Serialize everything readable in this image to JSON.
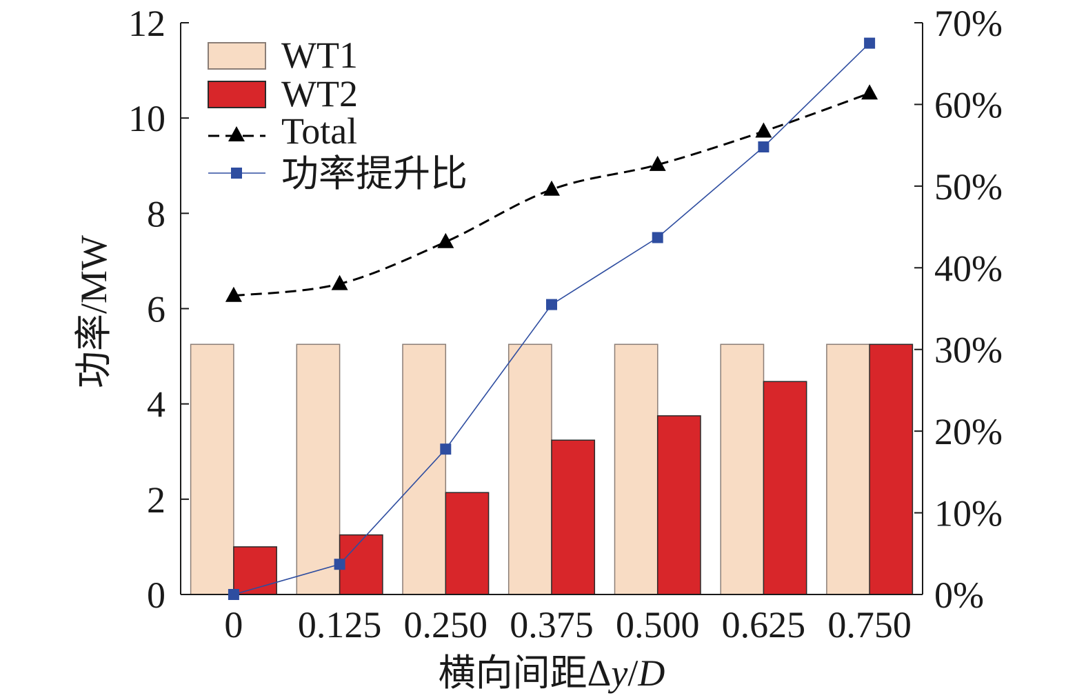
{
  "chart_data": {
    "type": "bar",
    "categories": [
      "0",
      "0.125",
      "0.250",
      "0.375",
      "0.500",
      "0.625",
      "0.750"
    ],
    "series": [
      {
        "name": "WT1",
        "type": "bar",
        "axis": "left",
        "color": "#f8dcc4",
        "edgecolor": "#8a7d76",
        "values": [
          5.25,
          5.25,
          5.25,
          5.25,
          5.25,
          5.25,
          5.25
        ]
      },
      {
        "name": "WT2",
        "type": "bar",
        "axis": "left",
        "color": "#d8262a",
        "edgecolor": "#2a2a2a",
        "values": [
          1.0,
          1.25,
          2.14,
          3.24,
          3.75,
          4.47,
          5.25
        ]
      },
      {
        "name": "Total",
        "type": "line",
        "axis": "left",
        "color": "#000000",
        "linestyle": "dashed",
        "marker": "triangle",
        "values": [
          6.27,
          6.52,
          7.4,
          8.5,
          9.02,
          9.72,
          10.52
        ]
      },
      {
        "name": "功率提升比",
        "type": "line",
        "axis": "right",
        "color": "#2e4da0",
        "linestyle": "solid",
        "marker": "square",
        "values": [
          0,
          3.7,
          17.8,
          35.5,
          43.7,
          54.8,
          67.5
        ]
      }
    ],
    "xlabel": "横向间距Δy/D",
    "ylabel": "功率/MW",
    "ylim": [
      0,
      12
    ],
    "yticks": [
      "0",
      "2",
      "4",
      "6",
      "8",
      "10",
      "12"
    ],
    "y2lim": [
      0,
      70
    ],
    "y2ticks": [
      "0%",
      "10%",
      "20%",
      "30%",
      "40%",
      "50%",
      "60%",
      "70%"
    ],
    "legend": "top-left",
    "grid": false
  }
}
